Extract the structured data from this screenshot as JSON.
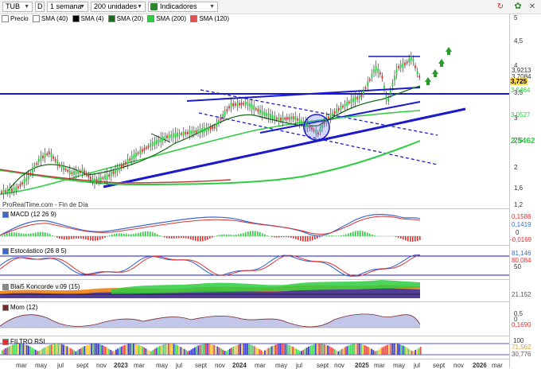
{
  "toolbar": {
    "symbol": "TUB",
    "d_button": "D",
    "period": "1 semana",
    "units": "200 unidades",
    "indicators": "Indicadores"
  },
  "legend": {
    "items": [
      {
        "label": "Precio",
        "color": "#ffffff"
      },
      {
        "label": "SMA (40)",
        "color": "#ffffff"
      },
      {
        "label": "SMA (4)",
        "color": "#000000"
      },
      {
        "label": "SMA (20)",
        "color": "#1a6b1a"
      },
      {
        "label": "SMA (200)",
        "color": "#2ecc40"
      },
      {
        "label": "SMA (120)",
        "color": "#e05050"
      }
    ]
  },
  "source_label": "ProRealTime.com - Fin de Día",
  "price_axis": {
    "ticks": [
      "5",
      "4,5",
      "4",
      "3,5",
      "3",
      "2,5",
      "2",
      "1,6",
      "1,2"
    ]
  },
  "price_tags": {
    "t1": "3,9213",
    "t2": "3,7084",
    "t3": "3,725",
    "t4": "3,5464",
    "t5": "3,0527",
    "t6": "2,5462"
  },
  "panels": {
    "macd": {
      "label": "MACD (12 26 9)",
      "v1": "0,1588",
      "v2": "0,1419",
      "v3": "-0,0169",
      "axis_mid": "0"
    },
    "stoch": {
      "label": "Estocástico (26 8 5)",
      "v1": "81,146",
      "v2": "80,084",
      "axis_lo": "50"
    },
    "blai": {
      "label": "Blai5 Koncorde v.09 (15)",
      "v1": "21,152"
    },
    "mom": {
      "label": "Mom (12)",
      "v1": "0,5",
      "v2": "0",
      "v3": "0,1690"
    },
    "rsi": {
      "label": "FILTRO RSI",
      "v1": "100",
      "v2": "71,562",
      "v3": "30,776"
    }
  },
  "x_axis": {
    "labels": [
      "mar",
      "may",
      "jul",
      "sept",
      "nov",
      "2023",
      "mar",
      "may",
      "jul",
      "sept",
      "nov",
      "2024",
      "mar",
      "may",
      "jul",
      "sept",
      "nov",
      "2025",
      "mar",
      "may",
      "jul",
      "sept",
      "nov",
      "2026",
      "mar"
    ]
  },
  "colors": {
    "up": "#2ecc40",
    "down": "#e03030",
    "trend": "#1a1acc",
    "sma200": "#2ecc40",
    "sma120": "#c04040"
  }
}
